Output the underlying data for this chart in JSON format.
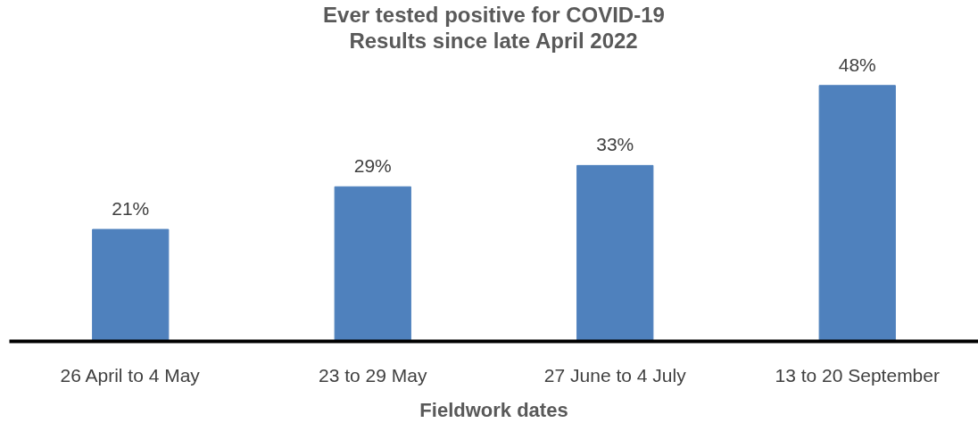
{
  "chart_data": {
    "type": "bar",
    "title": "Ever tested positive for COVID-19",
    "subtitle": "Results since late April 2022",
    "xlabel": "Fieldwork dates",
    "categories": [
      "26 April to 4 May",
      "23 to 29 May",
      "27 June to 4 July",
      "13 to 20 September"
    ],
    "values": [
      21,
      29,
      33,
      48
    ],
    "value_labels": [
      "21%",
      "29%",
      "33%",
      "48%"
    ],
    "color": "#4f81bd",
    "grid": false
  }
}
